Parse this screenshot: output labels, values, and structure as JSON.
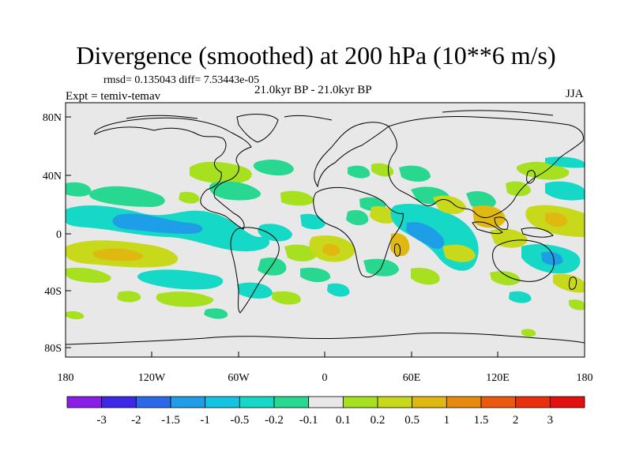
{
  "title": "Divergence (smoothed) at 200 hPa (10**6 m/s)",
  "stats": "rmsd= 0.135043 diff= 7.53443e-05",
  "period": "21.0kyr BP - 21.0kyr BP",
  "expt": "Expt = temiv-temav",
  "season": "JJA",
  "axes": {
    "lon_labels": [
      "180",
      "120W",
      "60W",
      "0",
      "60E",
      "120E",
      "180"
    ],
    "lat_labels": [
      "80N",
      "40N",
      "0",
      "40S",
      "80S"
    ]
  },
  "colorbar": {
    "labels": [
      "-3",
      "-2",
      "-1.5",
      "-1",
      "-0.5",
      "-0.2",
      "-0.1",
      "0.1",
      "0.2",
      "0.5",
      "1",
      "1.5",
      "2",
      "3"
    ],
    "colors": [
      "#8a1ee6",
      "#3c28e6",
      "#2a6ae8",
      "#1e9ee6",
      "#12c4e2",
      "#16d8c6",
      "#28d890",
      "#e8e8e8",
      "#a6e01e",
      "#c8d81a",
      "#e0b812",
      "#e88a10",
      "#ea5a0e",
      "#e8300c",
      "#e41010"
    ]
  },
  "background_color": "#e8e8e8"
}
